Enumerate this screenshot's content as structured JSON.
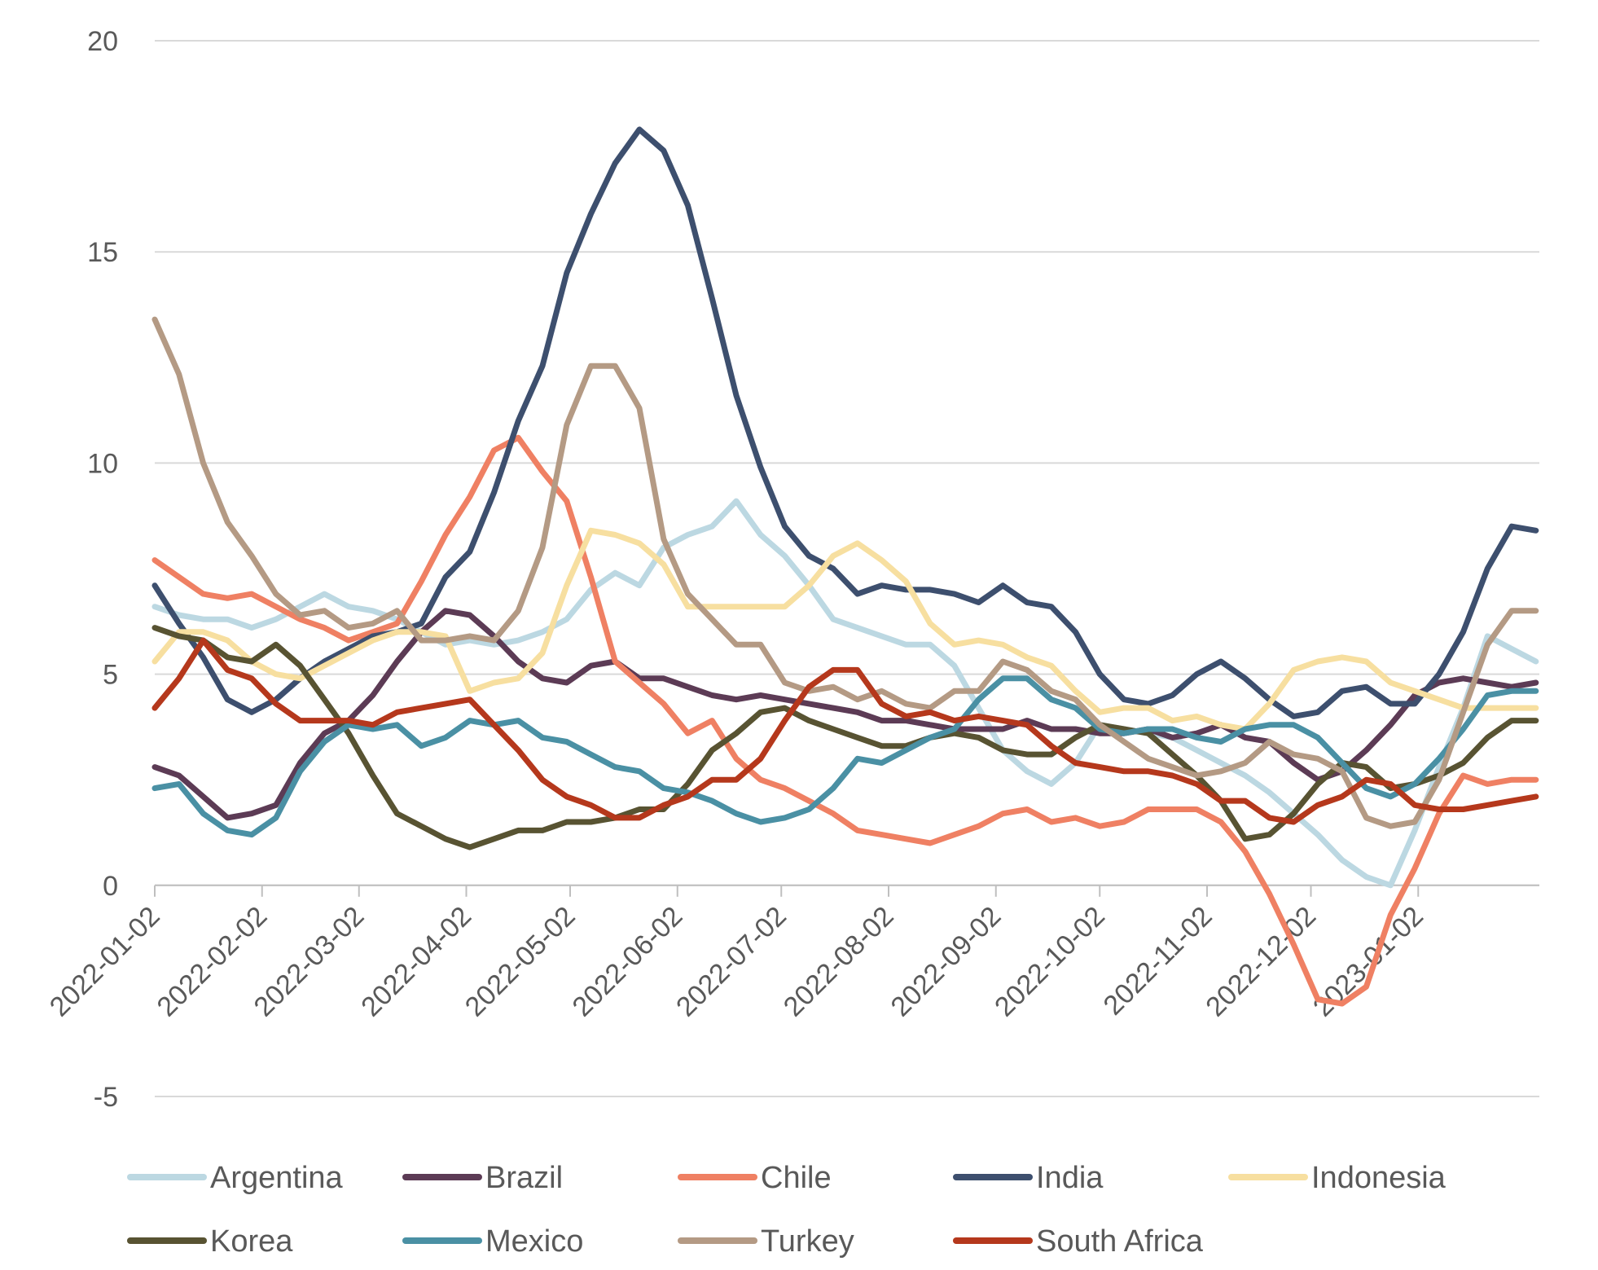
{
  "chart_data": {
    "type": "line",
    "title": "",
    "xlabel": "",
    "ylabel": "",
    "ylim": [
      -5,
      20
    ],
    "yticks": [
      -5,
      0,
      5,
      10,
      15,
      20
    ],
    "ytick_labels": [
      "-5",
      "0",
      "5",
      "10",
      "15",
      "20"
    ],
    "xlim": [
      "2022-01-02",
      "2023-02-06"
    ],
    "xticks": [
      "2022-01-02",
      "2022-02-02",
      "2022-03-02",
      "2022-04-02",
      "2022-05-02",
      "2022-06-02",
      "2022-07-02",
      "2022-08-02",
      "2022-09-02",
      "2022-10-02",
      "2022-11-02",
      "2022-12-02",
      "2023-01-02"
    ],
    "grid": true,
    "legend_position": "bottom",
    "x": [
      "2022-01-02",
      "2022-01-09",
      "2022-01-16",
      "2022-01-23",
      "2022-01-30",
      "2022-02-06",
      "2022-02-13",
      "2022-02-20",
      "2022-02-27",
      "2022-03-06",
      "2022-03-13",
      "2022-03-20",
      "2022-03-27",
      "2022-04-03",
      "2022-04-10",
      "2022-04-17",
      "2022-04-24",
      "2022-05-01",
      "2022-05-08",
      "2022-05-15",
      "2022-05-22",
      "2022-05-29",
      "2022-06-05",
      "2022-06-12",
      "2022-06-19",
      "2022-06-26",
      "2022-07-03",
      "2022-07-10",
      "2022-07-17",
      "2022-07-24",
      "2022-07-31",
      "2022-08-07",
      "2022-08-14",
      "2022-08-21",
      "2022-08-28",
      "2022-09-04",
      "2022-09-11",
      "2022-09-18",
      "2022-09-25",
      "2022-10-02",
      "2022-10-09",
      "2022-10-16",
      "2022-10-23",
      "2022-10-30",
      "2022-11-06",
      "2022-11-13",
      "2022-11-20",
      "2022-11-27",
      "2022-12-04",
      "2022-12-11",
      "2022-12-18",
      "2022-12-25",
      "2023-01-01",
      "2023-01-08",
      "2023-01-15",
      "2023-01-22",
      "2023-01-29",
      "2023-02-05"
    ],
    "series": [
      {
        "name": "Argentina",
        "color": "#bcd8e2",
        "values": [
          6.6,
          6.4,
          6.3,
          6.3,
          6.1,
          6.3,
          6.6,
          6.9,
          6.6,
          6.5,
          6.3,
          6.0,
          5.7,
          5.8,
          5.7,
          5.8,
          6.0,
          6.3,
          7.0,
          7.4,
          7.1,
          8.0,
          8.3,
          8.5,
          9.1,
          8.3,
          7.8,
          7.1,
          6.3,
          6.1,
          5.9,
          5.7,
          5.7,
          5.2,
          4.2,
          3.2,
          2.7,
          2.4,
          2.9,
          3.8,
          3.7,
          3.6,
          3.5,
          3.2,
          2.9,
          2.6,
          2.2,
          1.7,
          1.2,
          0.6,
          0.2,
          0.0,
          1.3,
          2.8,
          4.2,
          5.9,
          5.6,
          5.3
        ]
      },
      {
        "name": "Brazil",
        "color": "#5c3b55",
        "values": [
          2.8,
          2.6,
          2.1,
          1.6,
          1.7,
          1.9,
          2.9,
          3.6,
          3.9,
          4.5,
          5.3,
          6.0,
          6.5,
          6.4,
          5.9,
          5.3,
          4.9,
          4.8,
          5.2,
          5.3,
          4.9,
          4.9,
          4.7,
          4.5,
          4.4,
          4.5,
          4.4,
          4.3,
          4.2,
          4.1,
          3.9,
          3.9,
          3.8,
          3.7,
          3.7,
          3.7,
          3.9,
          3.7,
          3.7,
          3.6,
          3.6,
          3.7,
          3.5,
          3.6,
          3.8,
          3.5,
          3.4,
          2.9,
          2.5,
          2.7,
          3.2,
          3.8,
          4.5,
          4.8,
          4.9,
          4.8,
          4.7,
          4.8
        ]
      },
      {
        "name": "Chile",
        "color": "#ef8063",
        "values": [
          7.7,
          7.3,
          6.9,
          6.8,
          6.9,
          6.6,
          6.3,
          6.1,
          5.8,
          6.0,
          6.2,
          7.2,
          8.3,
          9.2,
          10.3,
          10.6,
          9.8,
          9.1,
          7.3,
          5.3,
          4.8,
          4.3,
          3.6,
          3.9,
          3.0,
          2.5,
          2.3,
          2.0,
          1.7,
          1.3,
          1.2,
          1.1,
          1.0,
          1.2,
          1.4,
          1.7,
          1.8,
          1.5,
          1.6,
          1.4,
          1.5,
          1.8,
          1.8,
          1.8,
          1.5,
          0.8,
          -0.2,
          -1.4,
          -2.7,
          -2.8,
          -2.4,
          -0.7,
          0.4,
          1.7,
          2.6,
          2.4,
          2.5,
          2.5
        ]
      },
      {
        "name": "India",
        "color": "#3d4f6e",
        "values": [
          7.1,
          6.2,
          5.4,
          4.4,
          4.1,
          4.4,
          4.9,
          5.3,
          5.6,
          5.9,
          6.0,
          6.2,
          7.3,
          7.9,
          9.3,
          11.0,
          12.3,
          14.5,
          15.9,
          17.1,
          17.9,
          17.4,
          16.1,
          13.9,
          11.6,
          9.9,
          8.5,
          7.8,
          7.5,
          6.9,
          7.1,
          7.0,
          7.0,
          6.9,
          6.7,
          7.1,
          6.7,
          6.6,
          6.0,
          5.0,
          4.4,
          4.3,
          4.5,
          5.0,
          5.3,
          4.9,
          4.4,
          4.0,
          4.1,
          4.6,
          4.7,
          4.3,
          4.3,
          5.0,
          6.0,
          7.5,
          8.5,
          8.4
        ]
      },
      {
        "name": "Indonesia",
        "color": "#f7dfa0",
        "values": [
          5.3,
          6.0,
          6.0,
          5.8,
          5.3,
          5.0,
          4.9,
          5.2,
          5.5,
          5.8,
          6.0,
          6.0,
          5.9,
          4.6,
          4.8,
          4.9,
          5.5,
          7.1,
          8.4,
          8.3,
          8.1,
          7.6,
          6.6,
          6.6,
          6.6,
          6.6,
          6.6,
          7.1,
          7.8,
          8.1,
          7.7,
          7.2,
          6.2,
          5.7,
          5.8,
          5.7,
          5.4,
          5.2,
          4.6,
          4.1,
          4.2,
          4.2,
          3.9,
          4.0,
          3.8,
          3.7,
          4.3,
          5.1,
          5.3,
          5.4,
          5.3,
          4.8,
          4.6,
          4.4,
          4.2,
          4.2,
          4.2,
          4.2
        ]
      },
      {
        "name": "Korea",
        "color": "#585332",
        "values": [
          6.1,
          5.9,
          5.8,
          5.4,
          5.3,
          5.7,
          5.2,
          4.4,
          3.6,
          2.6,
          1.7,
          1.4,
          1.1,
          0.9,
          1.1,
          1.3,
          1.3,
          1.5,
          1.5,
          1.6,
          1.8,
          1.8,
          2.4,
          3.2,
          3.6,
          4.1,
          4.2,
          3.9,
          3.7,
          3.5,
          3.3,
          3.3,
          3.5,
          3.6,
          3.5,
          3.2,
          3.1,
          3.1,
          3.5,
          3.8,
          3.7,
          3.6,
          3.1,
          2.6,
          2.0,
          1.1,
          1.2,
          1.7,
          2.4,
          2.9,
          2.8,
          2.3,
          2.4,
          2.6,
          2.9,
          3.5,
          3.9,
          3.9
        ]
      },
      {
        "name": "Mexico",
        "color": "#4a90a4",
        "values": [
          2.3,
          2.4,
          1.7,
          1.3,
          1.2,
          1.6,
          2.7,
          3.4,
          3.8,
          3.7,
          3.8,
          3.3,
          3.5,
          3.9,
          3.8,
          3.9,
          3.5,
          3.4,
          3.1,
          2.8,
          2.7,
          2.3,
          2.2,
          2.0,
          1.7,
          1.5,
          1.6,
          1.8,
          2.3,
          3.0,
          2.9,
          3.2,
          3.5,
          3.7,
          4.4,
          4.9,
          4.9,
          4.4,
          4.2,
          3.7,
          3.6,
          3.7,
          3.7,
          3.5,
          3.4,
          3.7,
          3.8,
          3.8,
          3.5,
          2.9,
          2.3,
          2.1,
          2.4,
          3.0,
          3.7,
          4.5,
          4.6,
          4.6
        ]
      },
      {
        "name": "Turkey",
        "color": "#b49a84",
        "values": [
          13.4,
          12.1,
          10.0,
          8.6,
          7.8,
          6.9,
          6.4,
          6.5,
          6.1,
          6.2,
          6.5,
          5.8,
          5.8,
          5.9,
          5.8,
          6.5,
          8.0,
          10.9,
          12.3,
          12.3,
          11.3,
          8.2,
          6.9,
          6.3,
          5.7,
          5.7,
          4.8,
          4.6,
          4.7,
          4.4,
          4.6,
          4.3,
          4.2,
          4.6,
          4.6,
          5.3,
          5.1,
          4.6,
          4.4,
          3.8,
          3.4,
          3.0,
          2.8,
          2.6,
          2.7,
          2.9,
          3.4,
          3.1,
          3.0,
          2.7,
          1.6,
          1.4,
          1.5,
          2.5,
          4.1,
          5.7,
          6.5,
          6.5
        ]
      },
      {
        "name": "South Africa",
        "color": "#b5381c",
        "values": [
          4.2,
          4.9,
          5.8,
          5.1,
          4.9,
          4.3,
          3.9,
          3.9,
          3.9,
          3.8,
          4.1,
          4.2,
          4.3,
          4.4,
          3.8,
          3.2,
          2.5,
          2.1,
          1.9,
          1.6,
          1.6,
          1.9,
          2.1,
          2.5,
          2.5,
          3.0,
          3.9,
          4.7,
          5.1,
          5.1,
          4.3,
          4.0,
          4.1,
          3.9,
          4.0,
          3.9,
          3.8,
          3.3,
          2.9,
          2.8,
          2.7,
          2.7,
          2.6,
          2.4,
          2.0,
          2.0,
          1.6,
          1.5,
          1.9,
          2.1,
          2.5,
          2.4,
          1.9,
          1.8,
          1.8,
          1.9,
          2.0,
          2.1
        ]
      }
    ]
  }
}
